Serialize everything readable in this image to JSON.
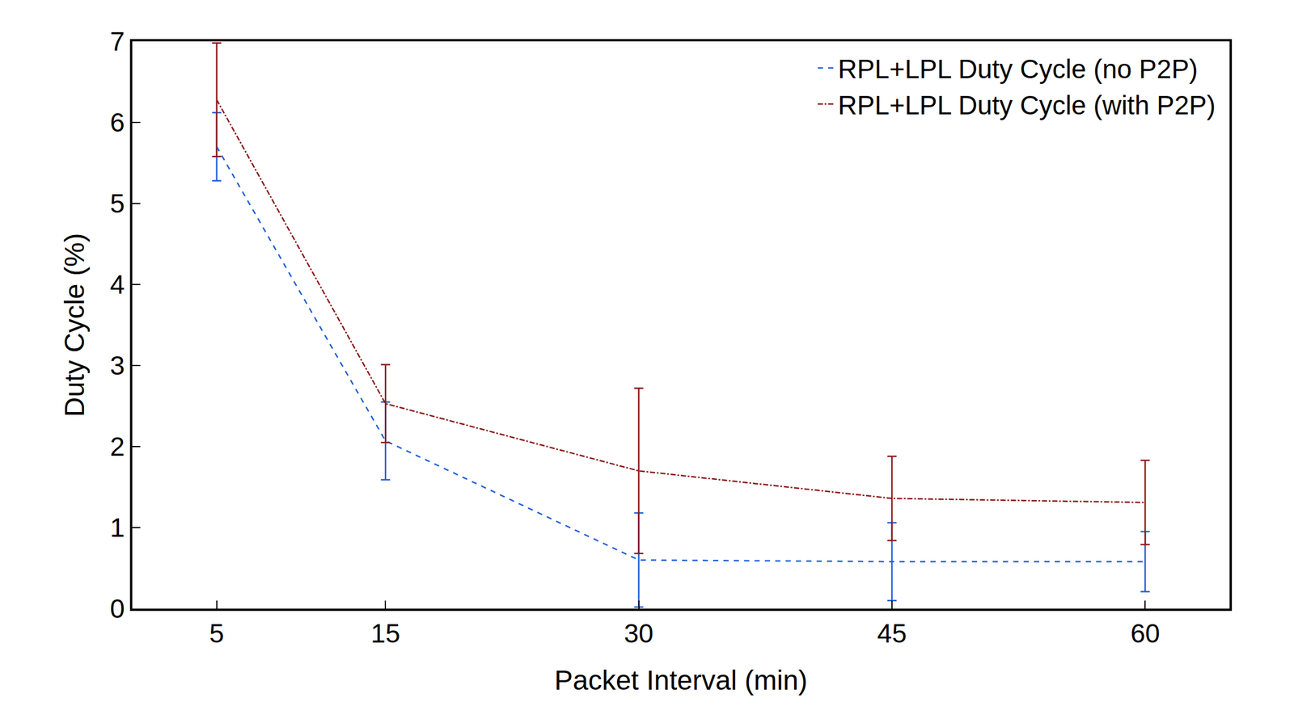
{
  "chart_data": {
    "type": "line",
    "x_label": "Packet Interval (min)",
    "y_label": "Duty Cycle (%)",
    "x": [
      5,
      15,
      30,
      45,
      60
    ],
    "xlim": [
      0,
      65
    ],
    "xticks": [
      5,
      15,
      30,
      45,
      60
    ],
    "ylim": [
      0,
      7
    ],
    "yticks": [
      0,
      1,
      2,
      3,
      4,
      5,
      6,
      7
    ],
    "grid": false,
    "legend": "top-right",
    "series": [
      {
        "name": "RPL+LPL Duty Cycle (no P2P)",
        "color": "#1f5fd6",
        "line_style": "dashed",
        "values": [
          5.7,
          2.07,
          0.6,
          0.58,
          0.58
        ],
        "error": [
          0.42,
          0.48,
          0.58,
          0.48,
          0.37
        ]
      },
      {
        "name": "RPL+LPL Duty Cycle (with P2P)",
        "color": "#8b1a1a",
        "line_style": "dashdot",
        "values": [
          6.28,
          2.53,
          1.7,
          1.36,
          1.31
        ],
        "error": [
          0.7,
          0.48,
          1.02,
          0.52,
          0.52
        ]
      }
    ]
  }
}
